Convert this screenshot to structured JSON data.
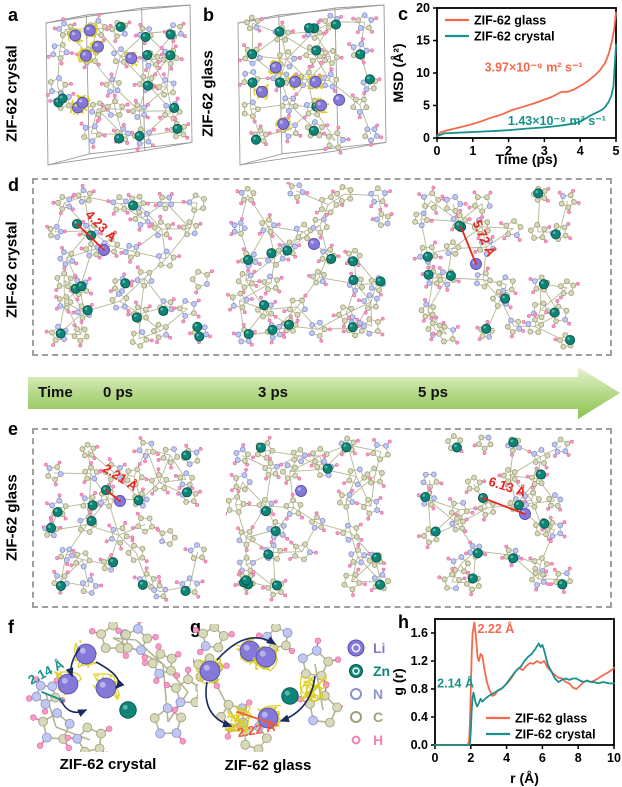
{
  "figure": {
    "panels": {
      "a": {
        "letter": "a",
        "side_label": "ZIF-62 crystal"
      },
      "b": {
        "letter": "b",
        "side_label": "ZIF-62 glass"
      },
      "c": {
        "letter": "c"
      },
      "d": {
        "letter": "d",
        "side_label": "ZIF-62 crystal",
        "annotations": [
          {
            "label": "4.23 Å"
          },
          {
            "label": "5.72 Å"
          }
        ]
      },
      "e": {
        "letter": "e",
        "side_label": "ZIF-62 glass",
        "annotations": [
          {
            "label": "2.21 Å"
          },
          {
            "label": "6.13 Å"
          }
        ]
      },
      "f": {
        "letter": "f",
        "caption": "ZIF-62 crystal",
        "annotation": "2.14 Å"
      },
      "g": {
        "letter": "g",
        "caption": "ZIF-62 glass",
        "annotation": "2.22 Å"
      },
      "h": {
        "letter": "h"
      }
    },
    "time_arrow": {
      "label": "Time",
      "ticks": [
        "0 ps",
        "3 ps",
        "5 ps"
      ]
    },
    "legend_atoms": [
      {
        "symbol": "Li",
        "fill": "#8478d8",
        "stroke": "#5a50ad",
        "label_color": "#8277d6",
        "r": 8,
        "style": "sphere"
      },
      {
        "symbol": "Zn",
        "fill": "#0e8476",
        "stroke": "#07584d",
        "label_color": "#0f8577",
        "r": 6.5,
        "style": "sphere"
      },
      {
        "symbol": "N",
        "fill": "#ffffff",
        "stroke": "#8891cd",
        "label_color": "#8d96cc",
        "r": 5,
        "style": "open"
      },
      {
        "symbol": "C",
        "fill": "#ffffff",
        "stroke": "#9f9f78",
        "label_color": "#a3a37e",
        "r": 5,
        "style": "open"
      },
      {
        "symbol": "H",
        "fill": "#ffffff",
        "stroke": "#ee85b5",
        "label_color": "#ee85b5",
        "r": 3.4,
        "style": "open"
      }
    ],
    "atom_style": {
      "C": {
        "fill": "#d8d8ba",
        "stroke": "#9f9f78"
      },
      "N": {
        "fill": "#c0c8ef",
        "stroke": "#8891cd"
      },
      "H": {
        "fill": "#f59cc6",
        "stroke": "#e0679e"
      },
      "Zn": {
        "fill": "#0e8476",
        "stroke": "#07584d",
        "hi": "#72cabd"
      },
      "Li": {
        "fill": "#8478d8",
        "stroke": "#5a50ad",
        "hi": "#cbc5f4"
      },
      "bond": "#b6b695"
    },
    "colors": {
      "glass_curve": "#f4694c",
      "crystal_curve": "#17918b",
      "measure_red": "#e8251d",
      "measure_teal": "#17918b",
      "measure_orange": "#f4583c",
      "arrow_green_light": "#e9f4d4",
      "arrow_green_mid": "#b5d98a",
      "arrow_green_dark": "#8dc24f",
      "dashed_border": "#9e9e9e",
      "yellow_trajectory": "#d9cd1a",
      "motion_arrow_navy": "#1a2a5e"
    }
  },
  "chart_data": [
    {
      "id": "msd",
      "type": "line",
      "title": "",
      "xlabel": "Time (ps)",
      "ylabel": "MSD (Å²)",
      "xlim": [
        0,
        5
      ],
      "ylim": [
        0,
        20
      ],
      "xticks": [
        0,
        1,
        2,
        3,
        4,
        5
      ],
      "yticks": [
        0,
        5,
        10,
        15,
        20
      ],
      "xticklabels": [
        "0",
        "1",
        "2",
        "3",
        "4",
        "5"
      ],
      "yticklabels": [
        "0",
        "5",
        "10",
        "15",
        "20"
      ],
      "grid": false,
      "legend_position": "top-left",
      "series": [
        {
          "name": "ZIF-62 glass",
          "color": "#f4694c",
          "x": [
            0,
            0.1,
            0.3,
            0.6,
            0.9,
            1.2,
            1.5,
            1.8,
            2.1,
            2.4,
            2.7,
            3.0,
            3.2,
            3.4,
            3.5,
            3.65,
            3.8,
            4.0,
            4.2,
            4.4,
            4.55,
            4.7,
            4.8,
            4.9,
            4.95,
            5.0
          ],
          "y": [
            0.3,
            0.9,
            1.2,
            1.6,
            2.0,
            2.5,
            3.1,
            3.6,
            4.3,
            4.8,
            5.3,
            5.9,
            6.3,
            6.9,
            7.1,
            7.1,
            7.4,
            8.0,
            8.7,
            9.6,
            10.4,
            11.6,
            13.0,
            15.2,
            16.8,
            19.3
          ]
        },
        {
          "name": "ZIF-62 crystal",
          "color": "#17918b",
          "x": [
            0,
            0.2,
            0.5,
            0.9,
            1.3,
            1.7,
            2.1,
            2.5,
            2.9,
            3.2,
            3.5,
            3.8,
            4.0,
            4.15,
            4.3,
            4.45,
            4.6,
            4.7,
            4.8,
            4.87,
            4.93,
            5.0
          ],
          "y": [
            0.3,
            0.7,
            0.8,
            0.9,
            1.0,
            1.1,
            1.25,
            1.45,
            1.6,
            1.75,
            1.95,
            2.2,
            2.5,
            3.0,
            3.5,
            3.9,
            4.3,
            4.8,
            5.6,
            6.5,
            8.0,
            14.4
          ]
        }
      ],
      "annotations": [
        {
          "text": "3.97×10⁻⁹ m² s⁻¹",
          "color": "#f4694c",
          "x": 2.7,
          "y": 10.2
        },
        {
          "text": "1.43×10⁻⁹ m² s⁻¹",
          "color": "#17918b",
          "x": 3.35,
          "y": 2.0
        }
      ]
    },
    {
      "id": "gr",
      "type": "line",
      "title": "",
      "xlabel": "r (Å)",
      "ylabel": "g (r)",
      "xlim": [
        0,
        10
      ],
      "ylim": [
        0,
        1.8
      ],
      "xticks": [
        0,
        2,
        4,
        6,
        8,
        10
      ],
      "yticks": [
        0,
        0.4,
        0.8,
        1.2,
        1.6
      ],
      "xticklabels": [
        "0",
        "2",
        "4",
        "6",
        "8",
        "10"
      ],
      "yticklabels": [
        "0.0",
        "0.4",
        "0.8",
        "1.2",
        "1.6"
      ],
      "grid": false,
      "legend_position": "bottom-right",
      "series": [
        {
          "name": "ZIF-62 glass",
          "color": "#f4694c",
          "x": [
            0,
            1.8,
            1.9,
            1.95,
            2.0,
            2.05,
            2.1,
            2.2,
            2.3,
            2.38,
            2.45,
            2.55,
            2.65,
            2.75,
            2.9,
            3.05,
            3.2,
            3.35,
            3.5,
            3.7,
            3.9,
            4.1,
            4.3,
            4.5,
            4.7,
            4.9,
            5.1,
            5.3,
            5.5,
            5.7,
            5.9,
            6.1,
            6.3,
            6.5,
            6.7,
            6.9,
            7.1,
            7.3,
            7.5,
            7.7,
            7.9,
            8.1,
            8.3,
            8.5,
            8.7,
            8.9,
            9.1,
            9.4,
            9.7,
            10
          ],
          "y": [
            0,
            0,
            0.05,
            0.3,
            0.8,
            1.3,
            1.6,
            1.75,
            1.5,
            1.25,
            1.2,
            1.3,
            1.27,
            1.1,
            0.9,
            0.78,
            0.7,
            0.72,
            0.78,
            0.8,
            0.85,
            0.9,
            0.97,
            1.05,
            1.1,
            1.07,
            1.13,
            1.17,
            1.16,
            1.2,
            1.17,
            1.2,
            1.1,
            1.05,
            1.0,
            0.96,
            0.95,
            0.9,
            0.88,
            0.82,
            0.8,
            0.85,
            0.9,
            0.92,
            0.9,
            0.92,
            0.95,
            1.0,
            1.04,
            1.1
          ]
        },
        {
          "name": "ZIF-62 crystal",
          "color": "#17918b",
          "x": [
            0,
            1.95,
            2.0,
            2.05,
            2.1,
            2.15,
            2.25,
            2.35,
            2.45,
            2.55,
            2.65,
            2.8,
            3.0,
            3.2,
            3.4,
            3.6,
            3.8,
            4.0,
            4.2,
            4.4,
            4.6,
            4.8,
            5.0,
            5.2,
            5.4,
            5.6,
            5.8,
            5.9,
            6.0,
            6.1,
            6.3,
            6.5,
            6.7,
            6.9,
            7.1,
            7.3,
            7.5,
            7.7,
            7.9,
            8.1,
            8.3,
            8.5,
            8.7,
            8.9,
            9.1,
            9.4,
            9.7,
            10
          ],
          "y": [
            0,
            0,
            0.2,
            0.5,
            0.68,
            0.75,
            0.62,
            0.55,
            0.6,
            0.66,
            0.62,
            0.66,
            0.7,
            0.73,
            0.76,
            0.79,
            0.82,
            0.88,
            0.95,
            1.02,
            1.08,
            1.12,
            1.2,
            1.26,
            1.3,
            1.37,
            1.45,
            1.4,
            1.43,
            1.35,
            1.15,
            1.05,
            0.95,
            0.9,
            0.93,
            0.95,
            0.93,
            0.95,
            0.95,
            0.92,
            0.9,
            0.92,
            0.9,
            0.9,
            0.88,
            0.9,
            0.88,
            0.88
          ]
        }
      ],
      "annotations": [
        {
          "text": "2.22 Å",
          "color": "#f4694c",
          "x": 3.4,
          "y": 1.6
        },
        {
          "text": "2.14 Å",
          "color": "#17918b",
          "x": 1.15,
          "y": 0.82
        }
      ]
    }
  ]
}
